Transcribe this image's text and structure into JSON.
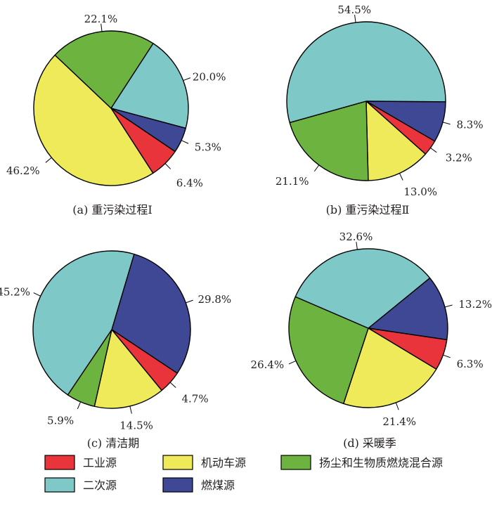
{
  "legend": [
    {
      "key": "industry",
      "label": "工业源",
      "color": "#e8343a"
    },
    {
      "key": "vehicle",
      "label": "机动车源",
      "color": "#eeea5a"
    },
    {
      "key": "dust_biomass",
      "label": "扬尘和生物质燃烧混合源",
      "color": "#6db33f"
    },
    {
      "key": "secondary",
      "label": "二次源",
      "color": "#7ec8c8"
    },
    {
      "key": "coal",
      "label": "燃煤源",
      "color": "#3e4895"
    }
  ],
  "chart_data": [
    {
      "type": "pie",
      "caption": "(a)  重污染过程Ⅰ",
      "slices": [
        {
          "key": "secondary",
          "value": 20.0,
          "label": "20.0%"
        },
        {
          "key": "coal",
          "value": 5.3,
          "label": "5.3%"
        },
        {
          "key": "industry",
          "value": 6.4,
          "label": "6.4%"
        },
        {
          "key": "vehicle",
          "value": 46.2,
          "label": "46.2%"
        },
        {
          "key": "dust_biomass",
          "value": 22.1,
          "label": "22.1%"
        }
      ]
    },
    {
      "type": "pie",
      "caption": "(b)  重污染过程Ⅱ",
      "slices": [
        {
          "key": "coal",
          "value": 8.3,
          "label": "8.3%"
        },
        {
          "key": "industry",
          "value": 3.2,
          "label": "3.2%"
        },
        {
          "key": "vehicle",
          "value": 13.0,
          "label": "13.0%"
        },
        {
          "key": "dust_biomass",
          "value": 21.1,
          "label": "21.1%"
        },
        {
          "key": "secondary",
          "value": 54.5,
          "label": "54.5%"
        }
      ]
    },
    {
      "type": "pie",
      "caption": "(c)  清洁期",
      "slices": [
        {
          "key": "coal",
          "value": 29.8,
          "label": "29.8%"
        },
        {
          "key": "industry",
          "value": 4.7,
          "label": "4.7%"
        },
        {
          "key": "vehicle",
          "value": 14.5,
          "label": "14.5%"
        },
        {
          "key": "dust_biomass",
          "value": 5.9,
          "label": "5.9%"
        },
        {
          "key": "secondary",
          "value": 45.2,
          "label": "45.2%"
        }
      ]
    },
    {
      "type": "pie",
      "caption": "(d)  采暖季",
      "slices": [
        {
          "key": "coal",
          "value": 13.2,
          "label": "13.2%"
        },
        {
          "key": "industry",
          "value": 6.3,
          "label": "6.3%"
        },
        {
          "key": "vehicle",
          "value": 21.4,
          "label": "21.4%"
        },
        {
          "key": "dust_biomass",
          "value": 26.4,
          "label": "26.4%"
        },
        {
          "key": "secondary",
          "value": 32.6,
          "label": "32.6%"
        }
      ]
    }
  ]
}
